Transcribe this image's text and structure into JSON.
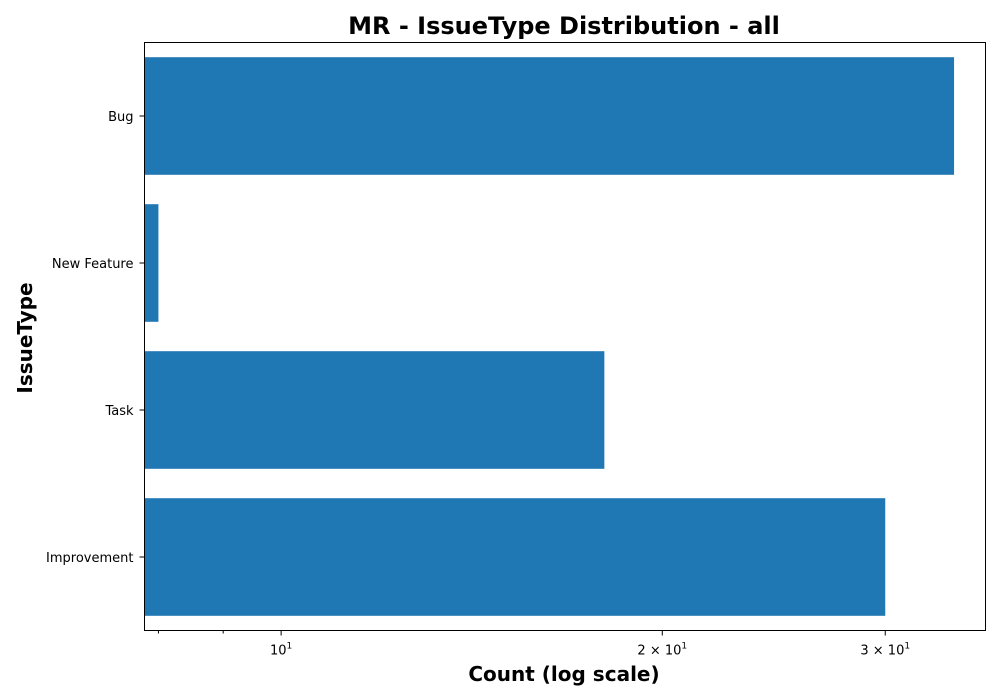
{
  "chart_data": {
    "type": "bar",
    "orientation": "horizontal",
    "title": "MR - IssueType Distribution - all",
    "xlabel": "Count (log scale)",
    "ylabel": "IssueType",
    "xscale": "log",
    "xlim": [
      7.8,
      36
    ],
    "categories": [
      "Bug",
      "New Feature",
      "Task",
      "Improvement"
    ],
    "values": [
      34,
      8,
      18,
      30
    ],
    "x_ticks": [
      {
        "value": 10,
        "base": "10",
        "exp": "1"
      },
      {
        "value": 20,
        "base": "2 × 10",
        "exp": "1"
      },
      {
        "value": 30,
        "base": "3 × 10",
        "exp": "1"
      }
    ],
    "x_minor_ticks": [
      8,
      9
    ],
    "bar_color": "#1f77b4",
    "grid": false,
    "legend": "none"
  }
}
